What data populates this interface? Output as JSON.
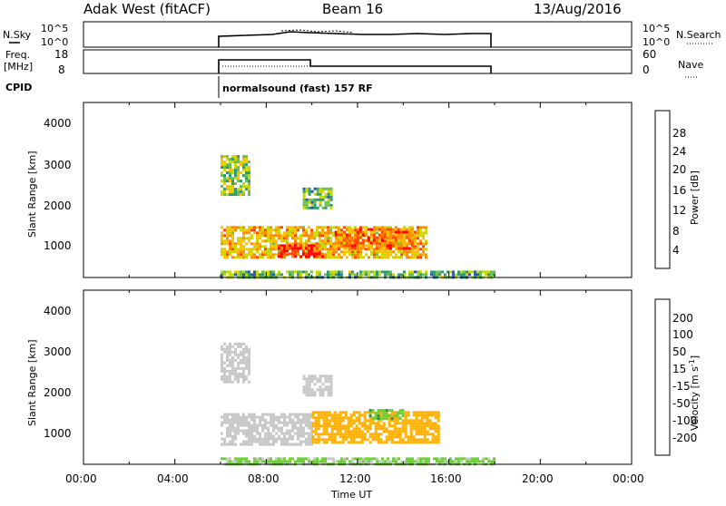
{
  "header": {
    "station": "Adak West (fitACF)",
    "beam": "Beam 16",
    "date": "13/Aug/2016"
  },
  "top_panels": {
    "nsky_label": "N.Sky",
    "nsky_ticks": [
      "10^5",
      "10^0"
    ],
    "nsky_right_ticks": [
      "10^5",
      "10^0"
    ],
    "nsearch_label": "N.Search",
    "freq_label_line1": "Freq.",
    "freq_label_line2": "[MHz]",
    "freq_ticks": [
      "18",
      "8"
    ],
    "nave_ticks": [
      "60",
      "0"
    ],
    "nave_label": "Nave",
    "cpid_label": "CPID",
    "cpid_text": "normalsound (fast) 157 RF"
  },
  "power_colorbar": {
    "label": "Power [dB]",
    "ticks": [
      "28",
      "24",
      "20",
      "16",
      "12",
      "8",
      "4"
    ],
    "colors": [
      "#ff0000",
      "#ff4a00",
      "#ff8c00",
      "#ffc000",
      "#c9d800",
      "#6cc04a",
      "#2f9a6e",
      "#2a5aa8",
      "#0000ff"
    ]
  },
  "velocity_colorbar": {
    "label": "Velocity [m s",
    "label_sup": "-1",
    "label_close": "]",
    "ticks": [
      "200",
      "100",
      "50",
      "15",
      "-15",
      "-50",
      "-100",
      "-200"
    ],
    "colors": [
      "#1a2db3",
      "#2e58b0",
      "#3a8a4a",
      "#6fcf3a",
      "#c8c8c8",
      "#ffb000",
      "#ff8a00",
      "#ff4a00",
      "#ff0000"
    ]
  },
  "chart_data": {
    "type": "heatmap",
    "xlabel": "Time UT",
    "x_ticks": [
      "00:00",
      "04:00",
      "08:00",
      "12:00",
      "16:00",
      "20:00",
      "00:00"
    ],
    "xlim_hours": [
      0,
      24
    ],
    "operating_window_hours": [
      6,
      18
    ],
    "panels": [
      {
        "name": "power",
        "ylabel": "Slant Range [km]",
        "y_ticks": [
          "4000",
          "3000",
          "2000",
          "1000"
        ],
        "ylim_km": [
          180,
          4500
        ],
        "echo_regions": [
          {
            "t0": 6.0,
            "t1": 15.0,
            "r0": 650,
            "r1": 1450,
            "value_db": 18
          },
          {
            "t0": 8.5,
            "t1": 10.5,
            "r0": 700,
            "r1": 1000,
            "value_db": 27
          },
          {
            "t0": 11.0,
            "t1": 14.5,
            "r0": 900,
            "r1": 1400,
            "value_db": 22
          },
          {
            "t0": 6.0,
            "t1": 7.2,
            "r0": 2200,
            "r1": 3200,
            "value_db": 12
          },
          {
            "t0": 9.6,
            "t1": 10.8,
            "r0": 1900,
            "r1": 2400,
            "value_db": 10
          },
          {
            "t0": 6.0,
            "t1": 18.0,
            "r0": 200,
            "r1": 350,
            "value_db": 10
          }
        ]
      },
      {
        "name": "velocity",
        "ylabel": "Slant Range [km]",
        "y_ticks": [
          "4000",
          "3000",
          "2000",
          "1000"
        ],
        "ylim_km": [
          180,
          4500
        ],
        "echo_regions": [
          {
            "t0": 6.0,
            "t1": 10.0,
            "r0": 650,
            "r1": 1450,
            "value_ms": 0
          },
          {
            "t0": 10.0,
            "t1": 15.5,
            "r0": 700,
            "r1": 1500,
            "value_ms": -30
          },
          {
            "t0": 12.5,
            "t1": 14.0,
            "r0": 1300,
            "r1": 1550,
            "value_ms": 40
          },
          {
            "t0": 6.0,
            "t1": 7.2,
            "r0": 2200,
            "r1": 3200,
            "value_ms": 0
          },
          {
            "t0": 9.6,
            "t1": 10.8,
            "r0": 1900,
            "r1": 2400,
            "value_ms": 0
          },
          {
            "t0": 6.0,
            "t1": 18.0,
            "r0": 200,
            "r1": 350,
            "value_ms": 20
          }
        ]
      }
    ]
  }
}
